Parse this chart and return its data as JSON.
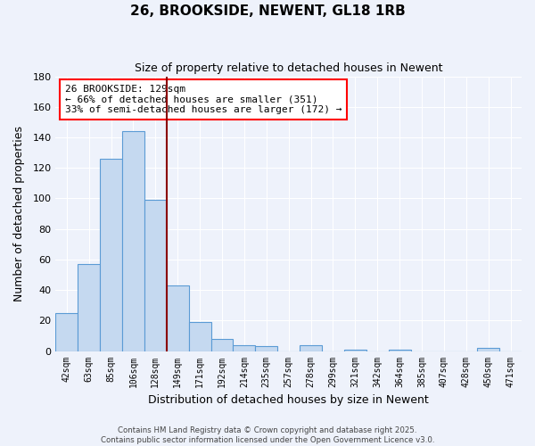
{
  "title": "26, BROOKSIDE, NEWENT, GL18 1RB",
  "subtitle": "Size of property relative to detached houses in Newent",
  "xlabel": "Distribution of detached houses by size in Newent",
  "ylabel": "Number of detached properties",
  "bins": [
    "42sqm",
    "63sqm",
    "85sqm",
    "106sqm",
    "128sqm",
    "149sqm",
    "171sqm",
    "192sqm",
    "214sqm",
    "235sqm",
    "257sqm",
    "278sqm",
    "299sqm",
    "321sqm",
    "342sqm",
    "364sqm",
    "385sqm",
    "407sqm",
    "428sqm",
    "450sqm",
    "471sqm"
  ],
  "values": [
    25,
    57,
    126,
    144,
    99,
    43,
    19,
    8,
    4,
    3,
    0,
    4,
    0,
    1,
    0,
    1,
    0,
    0,
    0,
    2,
    0
  ],
  "highlight_bin_index": 4,
  "bar_color": "#c5d9f0",
  "bar_edge_color": "#5b9bd5",
  "highlight_line_color": "#8b0000",
  "background_color": "#eef2fb",
  "grid_color": "#ffffff",
  "ylim": [
    0,
    180
  ],
  "yticks": [
    0,
    20,
    40,
    60,
    80,
    100,
    120,
    140,
    160,
    180
  ],
  "annotation_title": "26 BROOKSIDE: 129sqm",
  "annotation_line1": "← 66% of detached houses are smaller (351)",
  "annotation_line2": "33% of semi-detached houses are larger (172) →",
  "annotation_box_color": "white",
  "annotation_edge_color": "red",
  "footer1": "Contains HM Land Registry data © Crown copyright and database right 2025.",
  "footer2": "Contains public sector information licensed under the Open Government Licence v3.0."
}
